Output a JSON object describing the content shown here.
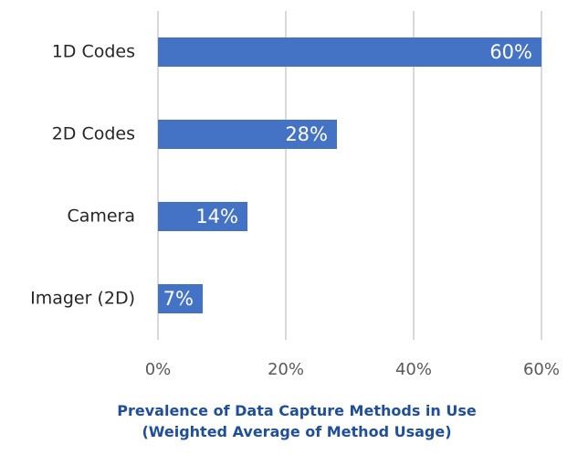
{
  "chart_data": {
    "type": "bar",
    "orientation": "horizontal",
    "categories": [
      "1D Codes",
      "2D Codes",
      "Camera",
      "Imager (2D)"
    ],
    "values": [
      60,
      28,
      14,
      7
    ],
    "value_labels": [
      "60%",
      "28%",
      "14%",
      "7%"
    ],
    "x_ticks": [
      "0%",
      "20%",
      "40%",
      "60%"
    ],
    "xlim": [
      0,
      60
    ],
    "grid": "vertical",
    "title_lines": [
      "Prevalence of Data Capture Methods in Use",
      "(Weighted Average of Method Usage)"
    ],
    "colors": {
      "bar": "#4472C4",
      "grid": "#D9D9D9",
      "title": "#1F4E9A"
    }
  }
}
